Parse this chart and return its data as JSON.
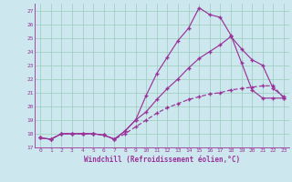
{
  "xlabel": "Windchill (Refroidissement éolien,°C)",
  "bg_color": "#cce8ee",
  "grid_color": "#99ccbb",
  "line_color": "#993399",
  "xlim": [
    -0.5,
    23.5
  ],
  "ylim": [
    17.0,
    27.5
  ],
  "xticks": [
    0,
    1,
    2,
    3,
    4,
    5,
    6,
    7,
    8,
    9,
    10,
    11,
    12,
    13,
    14,
    15,
    16,
    17,
    18,
    19,
    20,
    21,
    22,
    23
  ],
  "yticks": [
    17,
    18,
    19,
    20,
    21,
    22,
    23,
    24,
    25,
    26,
    27
  ],
  "line1_x": [
    0,
    1,
    2,
    3,
    4,
    5,
    6,
    7,
    8,
    9,
    10,
    11,
    12,
    13,
    14,
    15,
    16,
    17,
    18,
    19,
    20,
    21,
    22,
    23
  ],
  "line1_y": [
    17.7,
    17.6,
    18.0,
    18.0,
    18.0,
    18.0,
    17.9,
    17.6,
    18.2,
    19.0,
    20.8,
    22.4,
    23.6,
    24.8,
    25.7,
    27.2,
    26.7,
    26.5,
    25.2,
    23.2,
    21.2,
    20.6,
    20.6,
    20.6
  ],
  "line2_x": [
    0,
    1,
    2,
    3,
    4,
    5,
    6,
    7,
    8,
    9,
    10,
    11,
    12,
    13,
    14,
    15,
    16,
    17,
    18,
    19,
    20,
    21,
    22,
    23
  ],
  "line2_y": [
    17.7,
    17.6,
    18.0,
    18.0,
    18.0,
    18.0,
    17.9,
    17.6,
    18.2,
    19.0,
    19.6,
    20.5,
    21.3,
    22.0,
    22.8,
    23.5,
    24.0,
    24.5,
    25.1,
    24.2,
    23.4,
    23.0,
    21.3,
    20.7
  ],
  "line3_x": [
    0,
    1,
    2,
    3,
    4,
    5,
    6,
    7,
    8,
    9,
    10,
    11,
    12,
    13,
    14,
    15,
    16,
    17,
    18,
    19,
    20,
    21,
    22,
    23
  ],
  "line3_y": [
    17.7,
    17.6,
    18.0,
    18.0,
    18.0,
    18.0,
    17.9,
    17.6,
    18.0,
    18.5,
    19.0,
    19.5,
    19.9,
    20.2,
    20.5,
    20.7,
    20.9,
    21.0,
    21.2,
    21.3,
    21.4,
    21.5,
    21.5,
    20.6
  ],
  "line1_style": "-",
  "line2_style": "-",
  "line3_style": "--",
  "marker_size": 3.5,
  "marker_ew": 1.0,
  "lw": 0.85
}
